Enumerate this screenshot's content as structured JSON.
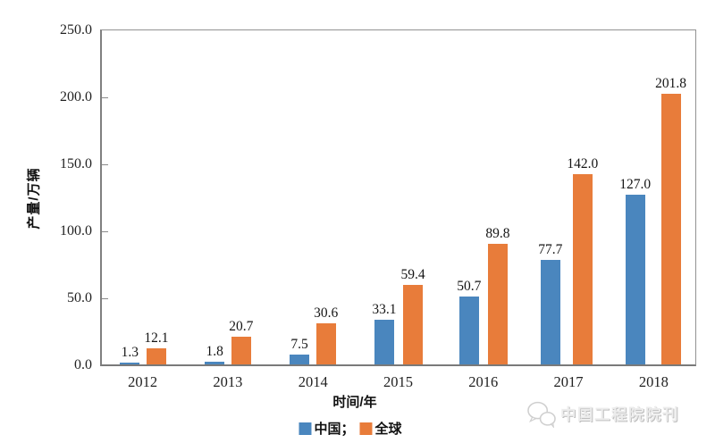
{
  "chart_data": {
    "type": "bar",
    "categories": [
      "2012",
      "2013",
      "2014",
      "2015",
      "2016",
      "2017",
      "2018"
    ],
    "series": [
      {
        "name": "中国",
        "color": "#4a86be",
        "values": [
          1.3,
          1.8,
          7.5,
          33.1,
          50.7,
          77.7,
          127.0
        ]
      },
      {
        "name": "全球",
        "color": "#e87c3a",
        "values": [
          12.1,
          20.7,
          30.6,
          59.4,
          89.8,
          142.0,
          201.8
        ]
      }
    ],
    "title": "",
    "xlabel": "时间/年",
    "ylabel": "产量/万辆",
    "ylim": [
      0,
      250
    ],
    "y_ticks": [
      0,
      50,
      100,
      150,
      200,
      250
    ],
    "y_tick_decimals": 1,
    "value_label_decimals": 1,
    "grid": false,
    "legend_position": "bottom-center",
    "legend_separator": "；",
    "colors": {
      "axis": "#808080",
      "plot_border": "#929292",
      "label_text": "#151515"
    }
  },
  "watermark": {
    "text": "中国工程院院刊",
    "logo": "chat-bubbles-logo"
  }
}
